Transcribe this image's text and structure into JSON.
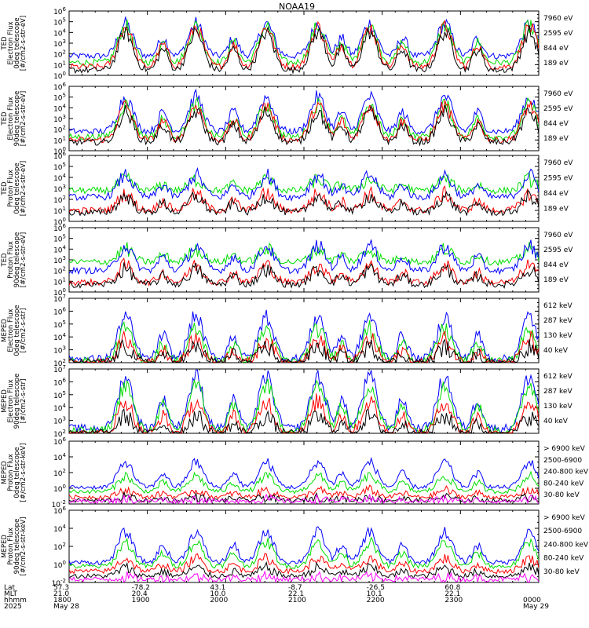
{
  "title": "NOAA19",
  "colors": {
    "blue": "#0000ff",
    "red": "#ff0000",
    "green": "#00dd00",
    "black": "#000000",
    "magenta": "#ff00ff"
  },
  "chart_data": [
    {
      "type": "line",
      "panel": 1,
      "ylabel": [
        "TED",
        "Electron Flux",
        "0deg telescope",
        "[#/cm2-s-str-eV]"
      ],
      "ylim_exp": [
        0,
        6
      ],
      "tick_labels": [
        "10^0",
        "10^1",
        "10^2",
        "10^3",
        "10^4",
        "10^5",
        "10^6"
      ],
      "legend": [
        {
          "label": "7960 eV",
          "color": "black"
        },
        {
          "label": "2595 eV",
          "color": "red"
        },
        {
          "label": "844 eV",
          "color": "green"
        },
        {
          "label": "189 eV",
          "color": "blue"
        }
      ],
      "series": [
        {
          "name": "189 eV",
          "color": "blue",
          "base": 1.8,
          "amp": 3.0
        },
        {
          "name": "844 eV",
          "color": "green",
          "base": 1.2,
          "amp": 3.4
        },
        {
          "name": "2595 eV",
          "color": "red",
          "base": 0.8,
          "amp": 3.7
        },
        {
          "name": "7960 eV",
          "color": "black",
          "base": 0.5,
          "amp": 3.5
        }
      ]
    },
    {
      "type": "line",
      "panel": 2,
      "ylabel": [
        "TED",
        "Electron Flux",
        "90deg telescope",
        "[#/cm2-s-str-eV]"
      ],
      "ylim_exp": [
        0,
        6
      ],
      "tick_labels": [
        "10^0",
        "10^1",
        "10^2",
        "10^3",
        "10^4",
        "10^5",
        "10^6"
      ],
      "legend": [
        {
          "label": "7960 eV",
          "color": "black"
        },
        {
          "label": "2595 eV",
          "color": "red"
        },
        {
          "label": "844 eV",
          "color": "green"
        },
        {
          "label": "189 eV",
          "color": "blue"
        }
      ],
      "series": [
        {
          "name": "189 eV",
          "color": "blue",
          "base": 1.8,
          "amp": 3.2
        },
        {
          "name": "844 eV",
          "color": "green",
          "base": 1.3,
          "amp": 3.0
        },
        {
          "name": "2595 eV",
          "color": "red",
          "base": 1.0,
          "amp": 3.2
        },
        {
          "name": "7960 eV",
          "color": "black",
          "base": 0.8,
          "amp": 2.8
        }
      ]
    },
    {
      "type": "line",
      "panel": 3,
      "ylabel": [
        "TED",
        "Proton Flux",
        "0deg telescope",
        "[#/cm2-s-str-eV]"
      ],
      "ylim_exp": [
        0,
        6
      ],
      "tick_labels": [
        "10^0",
        "10^1",
        "10^2",
        "10^3",
        "10^4",
        "10^5",
        "10^6"
      ],
      "legend": [
        {
          "label": "7960 eV",
          "color": "black"
        },
        {
          "label": "2595 eV",
          "color": "red"
        },
        {
          "label": "844 eV",
          "color": "green"
        },
        {
          "label": "189 eV",
          "color": "blue"
        }
      ],
      "series": [
        {
          "name": "844 eV",
          "color": "green",
          "base": 2.8,
          "amp": 1.0
        },
        {
          "name": "189 eV",
          "color": "blue",
          "base": 2.2,
          "amp": 2.0
        },
        {
          "name": "2595 eV",
          "color": "red",
          "base": 1.0,
          "amp": 1.5
        },
        {
          "name": "7960 eV",
          "color": "black",
          "base": 0.8,
          "amp": 1.5
        }
      ]
    },
    {
      "type": "line",
      "panel": 4,
      "ylabel": [
        "TED",
        "Proton Flux",
        "90deg telescope",
        "[#/cm2-s-str-eV]"
      ],
      "ylim_exp": [
        0,
        6
      ],
      "tick_labels": [
        "10^0",
        "10^1",
        "10^2",
        "10^3",
        "10^4",
        "10^5",
        "10^6"
      ],
      "legend": [
        {
          "label": "7960 eV",
          "color": "black"
        },
        {
          "label": "2595 eV",
          "color": "red"
        },
        {
          "label": "844 eV",
          "color": "green"
        },
        {
          "label": "189 eV",
          "color": "blue"
        }
      ],
      "series": [
        {
          "name": "844 eV",
          "color": "green",
          "base": 2.8,
          "amp": 1.2
        },
        {
          "name": "189 eV",
          "color": "blue",
          "base": 2.0,
          "amp": 2.3
        },
        {
          "name": "2595 eV",
          "color": "red",
          "base": 0.9,
          "amp": 1.6
        },
        {
          "name": "7960 eV",
          "color": "black",
          "base": 0.7,
          "amp": 1.4
        }
      ]
    },
    {
      "type": "line",
      "panel": 5,
      "ylabel": [
        "MEPED",
        "Electron Flux",
        "0deg telescope",
        "[#/cm2-s-str]"
      ],
      "ylim_exp": [
        2,
        7
      ],
      "tick_labels": [
        "10^2",
        "10^3",
        "10^4",
        "10^5",
        "10^6",
        "10^7"
      ],
      "legend": [
        {
          "label": "612 keV",
          "color": "black"
        },
        {
          "label": "287 keV",
          "color": "red"
        },
        {
          "label": "130 keV",
          "color": "green"
        },
        {
          "label": "40 keV",
          "color": "blue"
        }
      ],
      "series": [
        {
          "name": "40 keV",
          "color": "blue",
          "base": 2.3,
          "amp": 3.3
        },
        {
          "name": "130 keV",
          "color": "green",
          "base": 2.1,
          "amp": 2.5
        },
        {
          "name": "287 keV",
          "color": "red",
          "base": 2.0,
          "amp": 1.8
        },
        {
          "name": "612 keV",
          "color": "black",
          "base": 2.0,
          "amp": 1.2
        }
      ]
    },
    {
      "type": "line",
      "panel": 6,
      "ylabel": [
        "MEPED",
        "Electron Flux",
        "90deg telescope",
        "[#/cm2-s-str]"
      ],
      "ylim_exp": [
        2,
        7
      ],
      "tick_labels": [
        "10^2",
        "10^3",
        "10^4",
        "10^5",
        "10^6",
        "10^7"
      ],
      "legend": [
        {
          "label": "612 keV",
          "color": "black"
        },
        {
          "label": "287 keV",
          "color": "red"
        },
        {
          "label": "130 keV",
          "color": "green"
        },
        {
          "label": "40 keV",
          "color": "blue"
        }
      ],
      "series": [
        {
          "name": "40 keV",
          "color": "blue",
          "base": 2.4,
          "amp": 4.0
        },
        {
          "name": "130 keV",
          "color": "green",
          "base": 2.2,
          "amp": 3.6
        },
        {
          "name": "287 keV",
          "color": "red",
          "base": 2.0,
          "amp": 2.5
        },
        {
          "name": "612 keV",
          "color": "black",
          "base": 2.0,
          "amp": 1.3
        }
      ]
    },
    {
      "type": "line",
      "panel": 7,
      "ylabel": [
        "MEPED",
        "Proton Flux",
        "0deg telescope",
        "[#/cm2-s-str-keV]"
      ],
      "ylim_exp": [
        -2,
        7
      ],
      "tick_labels": [
        "10^-2",
        "10^0",
        "10^2",
        "10^4",
        "10^6"
      ],
      "legend": [
        {
          "label": "> 6900 keV",
          "color": "magenta"
        },
        {
          "label": "2500-6900",
          "color": "black"
        },
        {
          "label": "240-800 keV",
          "color": "red"
        },
        {
          "label": "80-240 keV",
          "color": "green"
        },
        {
          "label": "30-80 keV",
          "color": "blue"
        }
      ],
      "series": [
        {
          "name": "30-80 keV",
          "color": "blue",
          "base": 0.4,
          "amp": 3.6
        },
        {
          "name": "80-240 keV",
          "color": "green",
          "base": -0.2,
          "amp": 2.2
        },
        {
          "name": "240-800 keV",
          "color": "red",
          "base": -1.0,
          "amp": 1.0
        },
        {
          "name": "2500-6900",
          "color": "black",
          "base": -1.5,
          "amp": 0.5
        },
        {
          "name": "> 6900 keV",
          "color": "magenta",
          "base": -1.6,
          "amp": 0.3
        }
      ]
    },
    {
      "type": "line",
      "panel": 8,
      "ylabel": [
        "MEPED",
        "Proton Flux",
        "90deg telescope",
        "[#/cm2-s-str-keV]"
      ],
      "ylim_exp": [
        -2,
        7
      ],
      "tick_labels": [
        "10^-2",
        "10^0",
        "10^2",
        "10^4",
        "10^6"
      ],
      "legend": [
        {
          "label": "> 6900 keV",
          "color": "magenta"
        },
        {
          "label": "2500-6900",
          "color": "black"
        },
        {
          "label": "240-800 keV",
          "color": "red"
        },
        {
          "label": "80-240 keV",
          "color": "green"
        },
        {
          "label": "30-80 keV",
          "color": "blue"
        }
      ],
      "series": [
        {
          "name": "30-80 keV",
          "color": "blue",
          "base": 0.5,
          "amp": 3.8
        },
        {
          "name": "80-240 keV",
          "color": "green",
          "base": 0.0,
          "amp": 3.0
        },
        {
          "name": "240-800 keV",
          "color": "red",
          "base": -0.6,
          "amp": 1.6
        },
        {
          "name": "2500-6900",
          "color": "black",
          "base": -1.2,
          "amp": 1.0
        },
        {
          "name": "> 6900 keV",
          "color": "magenta",
          "base": -1.6,
          "amp": 0.3
        }
      ]
    }
  ],
  "time_axis": {
    "row_labels": [
      "Lat",
      "MLT",
      "hhmm",
      "2025"
    ],
    "ticks": [
      {
        "lat": "57.3",
        "mlt": "21.0",
        "hhmm": "1800",
        "date": "May 28"
      },
      {
        "lat": "-78.2",
        "mlt": "20.4",
        "hhmm": "1900",
        "date": ""
      },
      {
        "lat": "43.1",
        "mlt": "10.0",
        "hhmm": "2000",
        "date": ""
      },
      {
        "lat": "-8.7",
        "mlt": "22.1",
        "hhmm": "2100",
        "date": ""
      },
      {
        "lat": "-26.5",
        "mlt": "10.1",
        "hhmm": "2200",
        "date": ""
      },
      {
        "lat": "60.8",
        "mlt": "22.1",
        "hhmm": "2300",
        "date": ""
      },
      {
        "lat": "",
        "mlt": "",
        "hhmm": "0000",
        "date": "May 29"
      }
    ],
    "storm_centers": [
      0.12,
      0.27,
      0.42,
      0.53,
      0.64,
      0.8,
      0.98
    ],
    "sub_peaks": [
      0.2,
      0.35,
      0.58,
      0.71,
      0.87
    ]
  }
}
